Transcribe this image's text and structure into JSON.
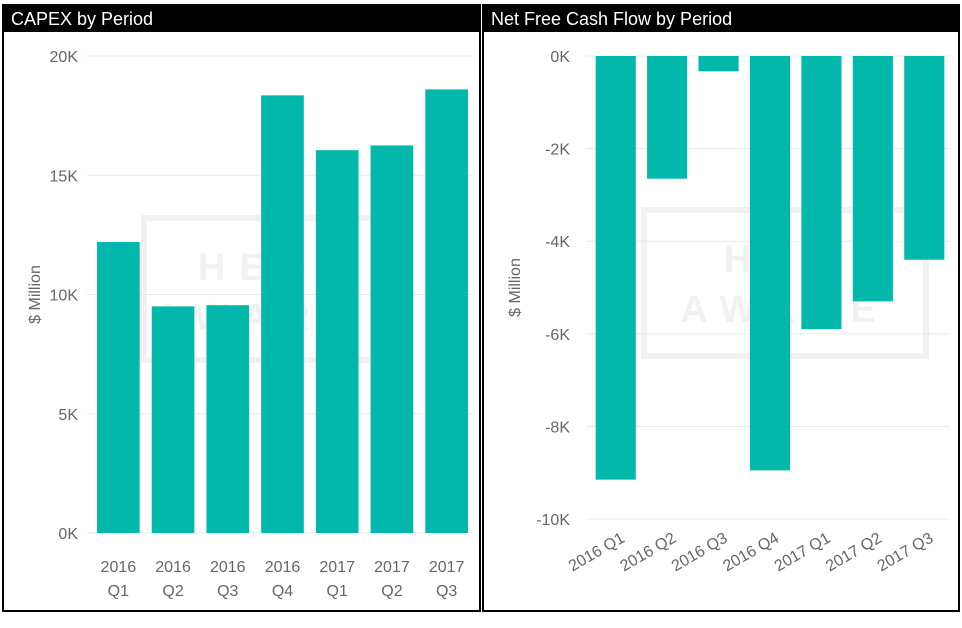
{
  "charts": [
    {
      "id": "capex",
      "title": "CAPEX by Period",
      "watermark_line1": "HED",
      "watermark_line2": "AWARE"
    },
    {
      "id": "nfcf",
      "title": "Net Free Cash Flow by Period",
      "watermark_line1": "HED",
      "watermark_line2": "AWARE"
    }
  ],
  "colors": {
    "bar": "#01B8AA",
    "gridline": "#e8e8e8",
    "axis_text": "#666666",
    "title_bg": "#000000",
    "title_text": "#ffffff"
  },
  "chart_data": [
    {
      "type": "bar",
      "title": "CAPEX by Period",
      "ylabel": "$ Million",
      "xlabel": "",
      "categories": [
        "2016 Q1",
        "2016 Q2",
        "2016 Q3",
        "2016 Q4",
        "2017 Q1",
        "2017 Q2",
        "2017 Q3"
      ],
      "category_lines": [
        [
          "2016",
          "Q1"
        ],
        [
          "2016",
          "Q2"
        ],
        [
          "2016",
          "Q3"
        ],
        [
          "2016",
          "Q4"
        ],
        [
          "2017",
          "Q1"
        ],
        [
          "2017",
          "Q2"
        ],
        [
          "2017",
          "Q3"
        ]
      ],
      "values": [
        12200,
        9500,
        9550,
        18350,
        16050,
        16250,
        18600
      ],
      "ylim": [
        0,
        20000
      ],
      "yticks": [
        0,
        5000,
        10000,
        15000,
        20000
      ],
      "ytick_labels": [
        "0K",
        "5K",
        "10K",
        "15K",
        "20K"
      ],
      "grid": true,
      "tick_label_rotation": 0
    },
    {
      "type": "bar",
      "title": "Net Free Cash Flow by Period",
      "ylabel": "$ Million",
      "xlabel": "",
      "categories": [
        "2016 Q1",
        "2016 Q2",
        "2016 Q3",
        "2016 Q4",
        "2017 Q1",
        "2017 Q2",
        "2017 Q3"
      ],
      "values": [
        -9150,
        -2650,
        -330,
        -8950,
        -5900,
        -5300,
        -4400
      ],
      "ylim": [
        -10000,
        0
      ],
      "yticks": [
        0,
        -2000,
        -4000,
        -6000,
        -8000,
        -10000
      ],
      "ytick_labels": [
        "0K",
        "-2K",
        "-4K",
        "-6K",
        "-8K",
        "-10K"
      ],
      "grid": true,
      "tick_label_rotation": -30
    }
  ]
}
